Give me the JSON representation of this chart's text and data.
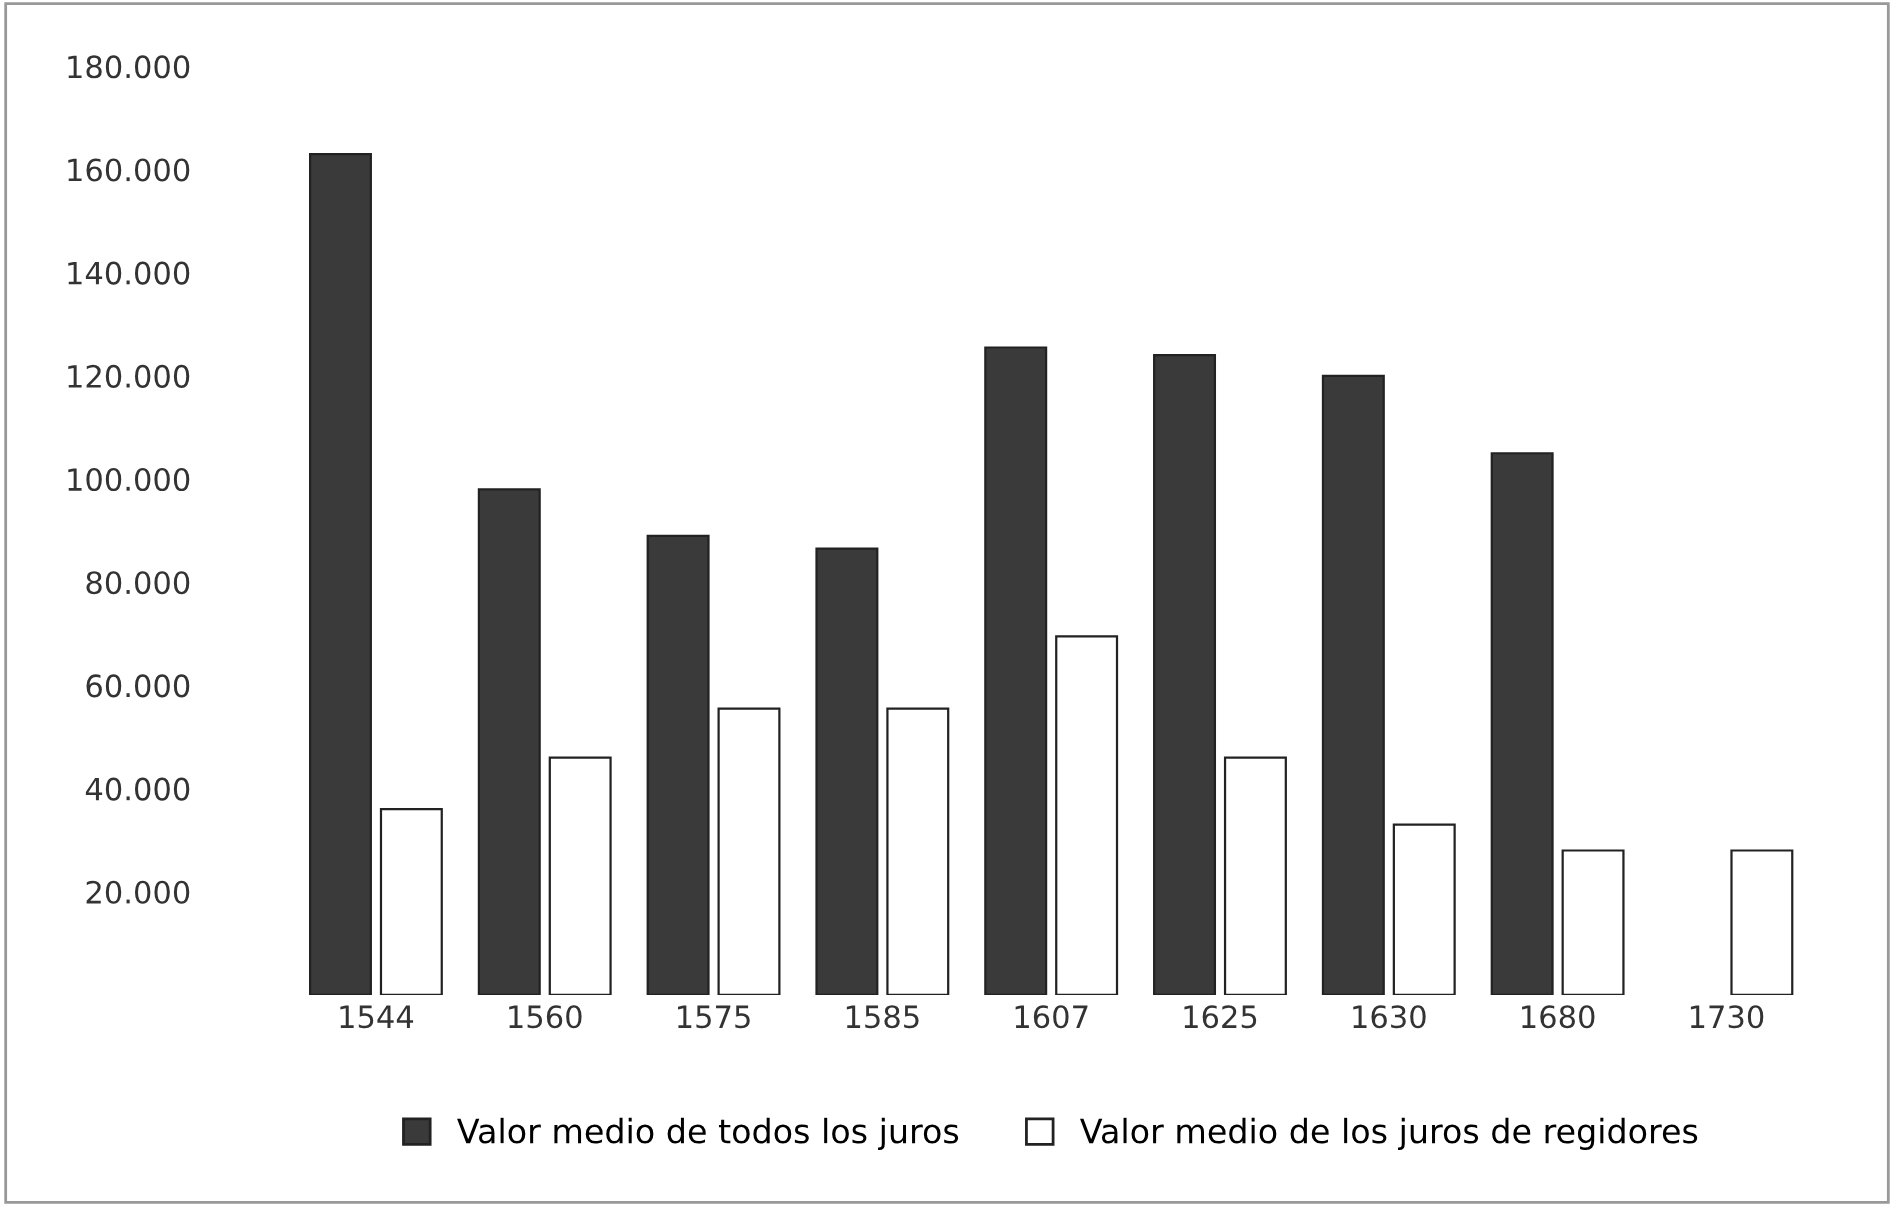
{
  "chart_data": {
    "type": "bar",
    "categories": [
      "1544",
      "1560",
      "1575",
      "1585",
      "1607",
      "1625",
      "1630",
      "1680",
      "1730"
    ],
    "series": [
      {
        "name": "Valor medio de todos los juros",
        "color": "#3a3a3a",
        "values": [
          163000,
          98000,
          89000,
          86500,
          125500,
          124000,
          120000,
          105000,
          null
        ]
      },
      {
        "name": "Valor medio de los juros de regidores",
        "color": "#ffffff",
        "values": [
          36000,
          46000,
          55500,
          55500,
          69500,
          46000,
          33000,
          28000,
          28000
        ]
      }
    ],
    "ylim": [
      0,
      180000
    ],
    "yticks": [
      {
        "value": 20000,
        "label": "20.000"
      },
      {
        "value": 40000,
        "label": "40.000"
      },
      {
        "value": 60000,
        "label": "60.000"
      },
      {
        "value": 80000,
        "label": "80.000"
      },
      {
        "value": 100000,
        "label": "100.000"
      },
      {
        "value": 120000,
        "label": "120.000"
      },
      {
        "value": 140000,
        "label": "140.000"
      },
      {
        "value": 160000,
        "label": "160.000"
      },
      {
        "value": 180000,
        "label": "180.000"
      }
    ],
    "grid": false,
    "legend": "bottom"
  }
}
